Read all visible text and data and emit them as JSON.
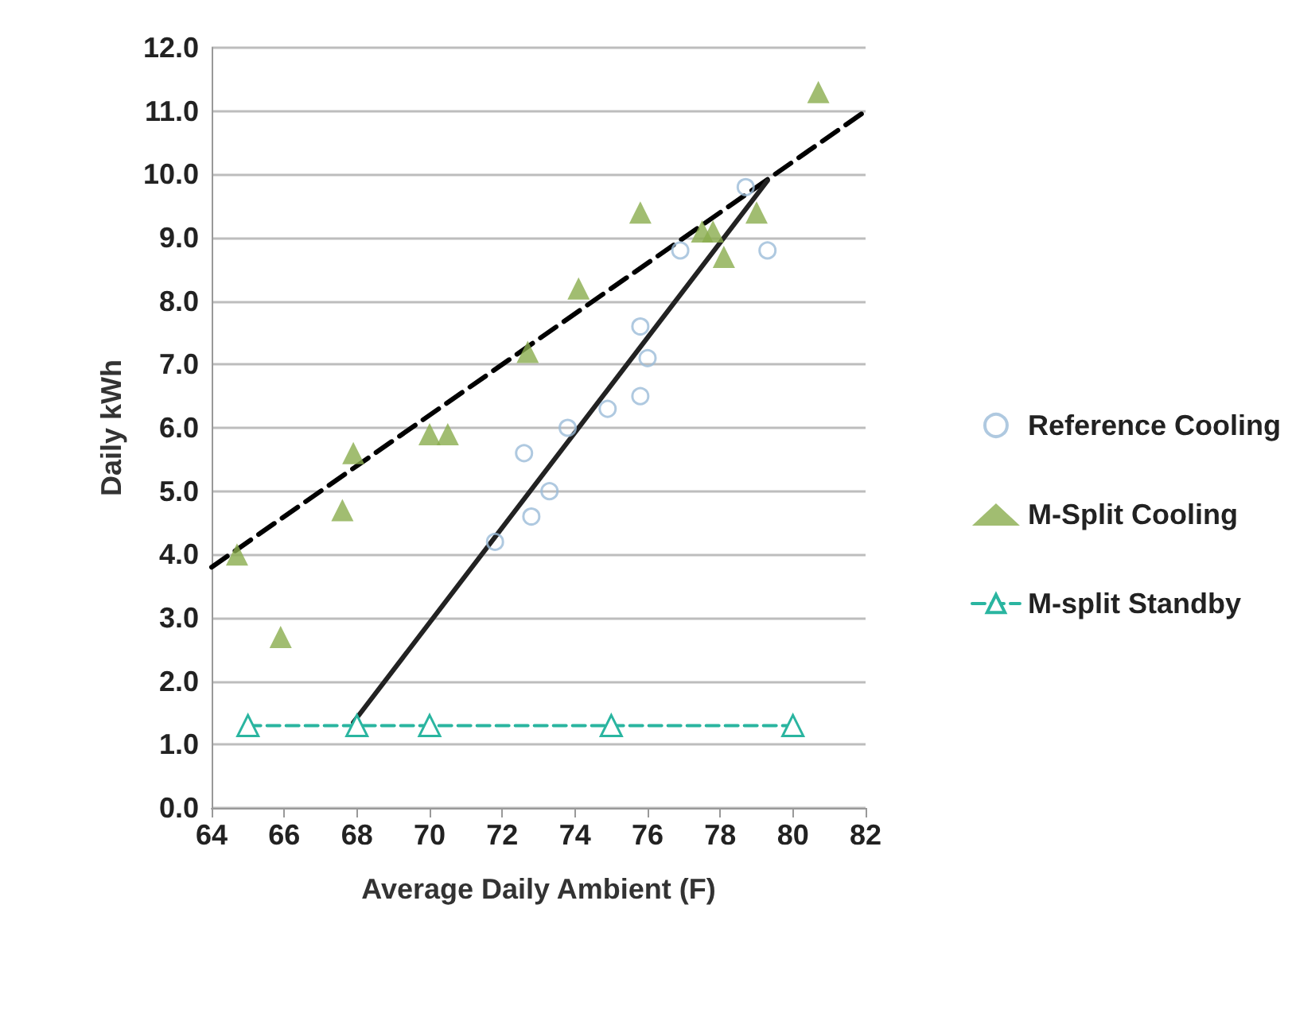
{
  "chart_data": {
    "type": "scatter",
    "xlabel": "Average Daily Ambient (F)",
    "ylabel": "Daily kWh",
    "xlim": [
      64,
      82
    ],
    "xticks": [
      64,
      66,
      68,
      70,
      72,
      74,
      76,
      78,
      80,
      82
    ],
    "ylim": [
      0,
      12
    ],
    "yticks": [
      {
        "value": 0,
        "label": "0.0"
      },
      {
        "value": 1,
        "label": "1.0"
      },
      {
        "value": 2,
        "label": "2.0"
      },
      {
        "value": 3,
        "label": "3.0"
      },
      {
        "value": 4,
        "label": "4.0"
      },
      {
        "value": 5,
        "label": "5.0"
      },
      {
        "value": 6,
        "label": "6.0"
      },
      {
        "value": 7,
        "label": "7.0"
      },
      {
        "value": 8,
        "label": "8.0"
      },
      {
        "value": 9,
        "label": "9.0"
      },
      {
        "value": 10,
        "label": "10.0"
      },
      {
        "value": 11,
        "label": "11.0"
      },
      {
        "value": 12,
        "label": "12.0"
      }
    ],
    "grid": "y",
    "legend": "right",
    "series": [
      {
        "name": "Reference Cooling",
        "type": "scatter",
        "marker": "circle",
        "color": "#9bbcd8",
        "x": [
          71.8,
          72.6,
          72.8,
          73.3,
          73.8,
          74.9,
          75.8,
          75.8,
          76.0,
          76.9,
          78.7,
          79.3
        ],
        "values": [
          4.2,
          5.6,
          4.6,
          5.0,
          6.0,
          6.3,
          6.5,
          7.6,
          7.1,
          8.8,
          9.8,
          8.8
        ]
      },
      {
        "name": "M-Split Cooling",
        "type": "scatter",
        "marker": "triangle",
        "color": "#8aac4e",
        "x": [
          64.7,
          65.9,
          67.6,
          67.9,
          70.0,
          70.5,
          72.7,
          74.1,
          75.8,
          77.5,
          77.8,
          78.1,
          79.0,
          80.7
        ],
        "values": [
          4.0,
          2.7,
          4.7,
          5.6,
          5.9,
          5.9,
          7.2,
          8.2,
          9.4,
          9.1,
          9.1,
          8.7,
          9.4,
          11.3
        ]
      },
      {
        "name": "M-split Standby",
        "type": "line",
        "marker": "triangle",
        "line_style": "dashed",
        "color": "#2ab5a0",
        "x": [
          65,
          68,
          70,
          75,
          80
        ],
        "values": [
          1.3,
          1.3,
          1.3,
          1.3,
          1.3
        ]
      },
      {
        "type": "line",
        "marker": "none",
        "line_style": "dashed",
        "color": "#000000",
        "x": [
          64,
          82
        ],
        "values": [
          3.8,
          11.0
        ]
      },
      {
        "type": "line",
        "marker": "none",
        "line_style": "solid",
        "color": "#222222",
        "x": [
          67.9,
          79.3
        ],
        "values": [
          1.35,
          9.9
        ]
      }
    ]
  }
}
